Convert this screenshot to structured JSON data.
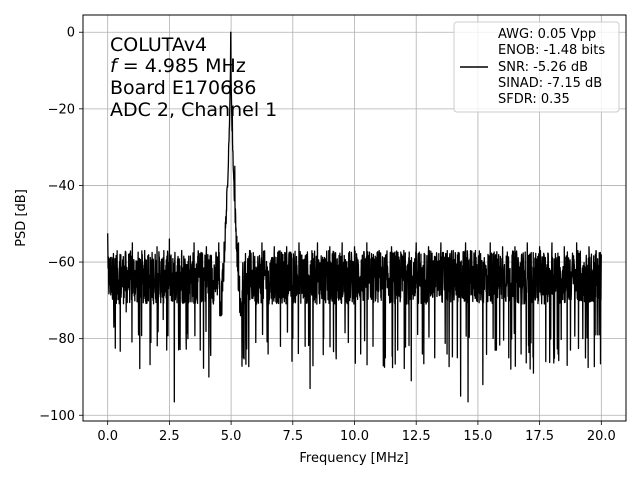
{
  "chart_data": {
    "type": "line",
    "xlabel": "Frequency [MHz]",
    "ylabel": "PSD [dB]",
    "xlim": [
      -1.0,
      21.0
    ],
    "ylim": [
      -101.5,
      4.5
    ],
    "xticks": [
      0.0,
      2.5,
      5.0,
      7.5,
      10.0,
      12.5,
      15.0,
      17.5,
      20.0
    ],
    "xtick_labels": [
      "0.0",
      "2.5",
      "5.0",
      "7.5",
      "10.0",
      "12.5",
      "15.0",
      "17.5",
      "20.0"
    ],
    "yticks": [
      0,
      -20,
      -40,
      -60,
      -80,
      -100
    ],
    "ytick_labels": [
      "0",
      "−20",
      "−40",
      "−60",
      "−80",
      "−100"
    ],
    "grid": true,
    "legend_position": "top-right",
    "annotation": {
      "line1": "COLUTAv4",
      "line2_var": "f",
      "line2_rest": " = 4.985 MHz",
      "line3": "Board E170686",
      "line4": "ADC 2, Channel 1"
    },
    "series": [
      {
        "color": "#000000",
        "legend_lines": [
          "AWG: 0.05 Vpp",
          "ENOB: -1.48 bits",
          "SNR: -5.26 dB",
          "SINAD: -7.15 dB",
          "SFDR: 0.35"
        ],
        "peak_frequency": 4.985,
        "peak_value": 0,
        "noise_floor_mean": -64,
        "noise_floor_min": -96.5,
        "noise_floor_max": -52.5,
        "points": [
          [
            0.0,
            -52.5
          ],
          [
            0.25,
            -77
          ],
          [
            0.5,
            -58
          ],
          [
            0.75,
            -73
          ],
          [
            1.0,
            -55
          ],
          [
            1.25,
            -79
          ],
          [
            1.5,
            -57
          ],
          [
            1.75,
            -81
          ],
          [
            2.0,
            -56
          ],
          [
            2.25,
            -75
          ],
          [
            2.5,
            -54
          ],
          [
            2.7,
            -96.5
          ],
          [
            3.0,
            -57
          ],
          [
            3.25,
            -80
          ],
          [
            3.5,
            -55
          ],
          [
            3.75,
            -83
          ],
          [
            4.0,
            -56
          ],
          [
            4.1,
            -90
          ],
          [
            4.5,
            -55
          ],
          [
            4.7,
            -65
          ],
          [
            4.8,
            -50
          ],
          [
            4.9,
            -30
          ],
          [
            4.985,
            0
          ],
          [
            5.05,
            -20
          ],
          [
            5.15,
            -35
          ],
          [
            5.3,
            -55
          ],
          [
            5.5,
            -85
          ],
          [
            5.75,
            -57
          ],
          [
            6.0,
            -81
          ],
          [
            6.25,
            -55
          ],
          [
            6.5,
            -84
          ],
          [
            6.75,
            -56
          ],
          [
            7.0,
            -82
          ],
          [
            7.25,
            -56
          ],
          [
            7.5,
            -80
          ],
          [
            7.75,
            -55
          ],
          [
            8.0,
            -82
          ],
          [
            8.2,
            -93
          ],
          [
            8.5,
            -55
          ],
          [
            8.75,
            -80
          ],
          [
            9.0,
            -56
          ],
          [
            9.25,
            -83
          ],
          [
            9.5,
            -55
          ],
          [
            9.75,
            -81
          ],
          [
            10.0,
            -56
          ],
          [
            10.25,
            -84
          ],
          [
            10.5,
            -55
          ],
          [
            10.75,
            -82
          ],
          [
            11.0,
            -57
          ],
          [
            11.25,
            -85
          ],
          [
            11.5,
            -56
          ],
          [
            11.75,
            -83
          ],
          [
            12.0,
            -57
          ],
          [
            12.3,
            -91
          ],
          [
            12.5,
            -55
          ],
          [
            12.75,
            -84
          ],
          [
            13.0,
            -56
          ],
          [
            13.25,
            -85
          ],
          [
            13.5,
            -55
          ],
          [
            13.75,
            -84
          ],
          [
            14.0,
            -57
          ],
          [
            14.3,
            -95
          ],
          [
            14.5,
            -55
          ],
          [
            14.6,
            -96.5
          ],
          [
            14.9,
            -57
          ],
          [
            15.2,
            -92
          ],
          [
            15.5,
            -55
          ],
          [
            15.75,
            -83
          ],
          [
            16.0,
            -56
          ],
          [
            16.25,
            -85
          ],
          [
            16.5,
            -56
          ],
          [
            16.75,
            -84
          ],
          [
            17.0,
            -55
          ],
          [
            17.25,
            -89
          ],
          [
            17.5,
            -56
          ],
          [
            17.75,
            -86
          ],
          [
            18.0,
            -55
          ],
          [
            18.25,
            -84
          ],
          [
            18.5,
            -56
          ],
          [
            18.75,
            -83
          ],
          [
            19.0,
            -55
          ],
          [
            19.25,
            -80
          ],
          [
            19.5,
            -56
          ],
          [
            19.75,
            -79
          ],
          [
            20.0,
            -58
          ]
        ]
      }
    ]
  }
}
